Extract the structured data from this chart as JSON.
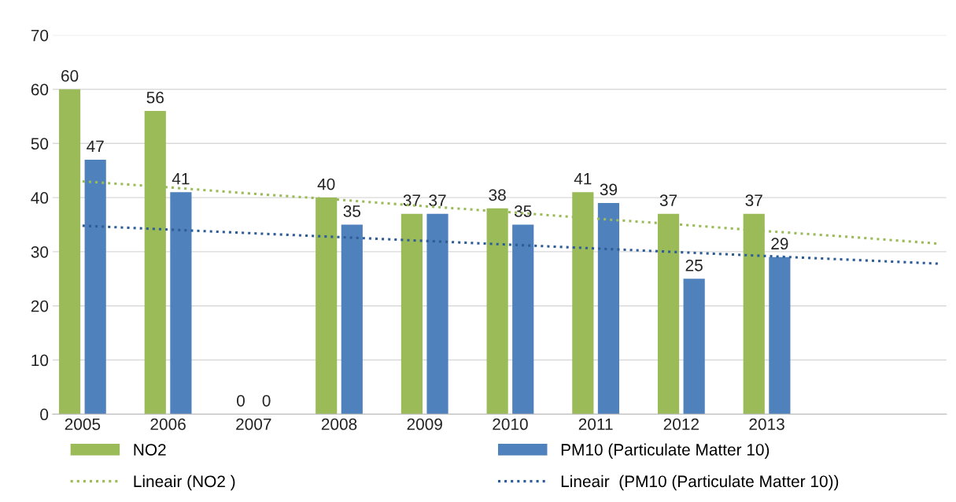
{
  "chart_data": {
    "type": "bar",
    "categories": [
      "2005",
      "2006",
      "2007",
      "2008",
      "2009",
      "2010",
      "2011",
      "2012",
      "2013",
      null,
      null
    ],
    "series": [
      {
        "name": "NO2",
        "color": "#9bbb59",
        "values": [
          60,
          56,
          0,
          40,
          37,
          38,
          41,
          37,
          37,
          null,
          null
        ],
        "value_labels": [
          "60",
          "56",
          "0",
          "40",
          "37",
          "38",
          "41",
          "37",
          "37",
          null,
          null
        ]
      },
      {
        "name": "PM10 (Particulate Matter 10)",
        "color": "#4f81bd",
        "values": [
          47,
          41,
          0,
          35,
          37,
          35,
          39,
          25,
          29,
          null,
          null
        ],
        "value_labels": [
          "47",
          "41",
          "0",
          "35",
          "37",
          "35",
          "39",
          "25",
          "29",
          null,
          null
        ]
      },
      {
        "name": "Lineair (NO2 )",
        "type": "line",
        "line_style": "dotted",
        "color": "#9bbb59",
        "values": [
          43.0,
          41.9,
          40.7,
          39.6,
          38.4,
          37.3,
          36.1,
          35.0,
          33.8,
          32.7,
          31.5
        ]
      },
      {
        "name": "Lineair  (PM10 (Particulate Matter 10))",
        "type": "line",
        "line_style": "dotted",
        "color": "#2e5c96",
        "values": [
          34.8,
          34.1,
          33.4,
          32.7,
          32.0,
          31.3,
          30.6,
          29.9,
          29.2,
          28.5,
          27.8
        ]
      }
    ],
    "ylim": [
      0,
      70
    ],
    "yticks": [
      0,
      10,
      20,
      30,
      40,
      50,
      60,
      70
    ],
    "grid": "y",
    "legend": "bottom"
  }
}
